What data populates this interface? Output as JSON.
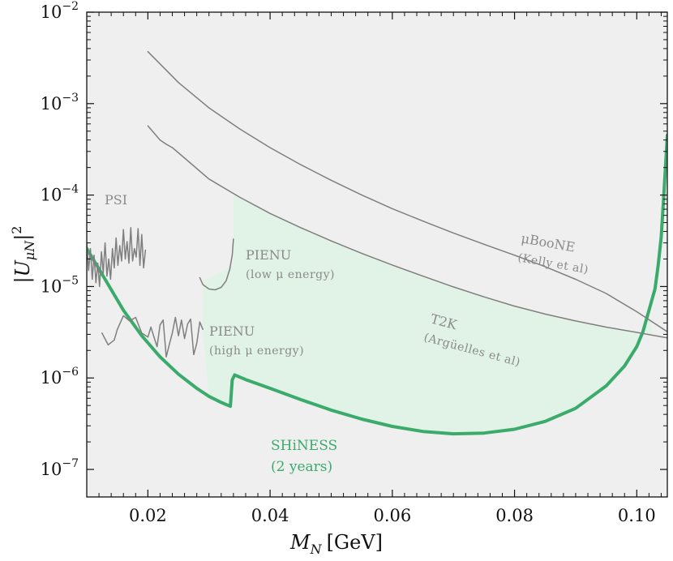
{
  "chart_data": {
    "type": "line",
    "xlabel": "M_N [GeV]",
    "xlabel_main": "M",
    "xlabel_sub": "N",
    "xlabel_unit": "[GeV]",
    "ylabel_main": "|U",
    "ylabel_sub": "μN",
    "ylabel_close": "|",
    "ylabel_exp": "2",
    "xlim": [
      0.01,
      0.105
    ],
    "ylim": [
      5e-08,
      0.01
    ],
    "x_ticks": [
      0.02,
      0.04,
      0.06,
      0.08,
      0.1
    ],
    "x_tick_labels": [
      "0.02",
      "0.04",
      "0.06",
      "0.08",
      "0.10"
    ],
    "y_ticks": [
      1e-07,
      1e-06,
      1e-05,
      0.0001,
      0.001,
      0.01
    ],
    "y_tick_bases": [
      "10",
      "10",
      "10",
      "10",
      "10",
      "10"
    ],
    "y_tick_exps": [
      "−7",
      "−6",
      "−5",
      "−4",
      "−3",
      "−2"
    ],
    "colors": {
      "excluded_fill": "#efefef",
      "projection_fill": "#e1f2e6",
      "projection_line": "#3aab6b",
      "existing_line": "#7f7f7f",
      "label_gray": "#8a8a8a",
      "axis": "#111111"
    },
    "series": [
      {
        "name": "SHiNESS (2 years)",
        "role": "projection",
        "x": [
          0.01,
          0.013,
          0.016,
          0.019,
          0.022,
          0.025,
          0.028,
          0.03,
          0.032,
          0.0335,
          0.0338,
          0.0342,
          0.036,
          0.04,
          0.045,
          0.05,
          0.055,
          0.06,
          0.065,
          0.07,
          0.075,
          0.08,
          0.085,
          0.09,
          0.095,
          0.098,
          0.1,
          0.101,
          0.102,
          0.103,
          0.1035,
          0.104,
          0.1045,
          0.105
        ],
        "y": [
          2.6e-05,
          1.2e-05,
          5.5e-06,
          2.9e-06,
          1.7e-06,
          1.1e-06,
          7.7e-07,
          6.3e-07,
          5.4e-07,
          4.9e-07,
          9.5e-07,
          1.08e-06,
          9.6e-07,
          7.7e-07,
          5.8e-07,
          4.45e-07,
          3.55e-07,
          2.95e-07,
          2.6e-07,
          2.45e-07,
          2.5e-07,
          2.75e-07,
          3.35e-07,
          4.65e-07,
          8.2e-07,
          1.35e-06,
          2.2e-06,
          3.2e-06,
          5.5e-06,
          9.5e-06,
          1.7e-05,
          3.5e-05,
          0.00012,
          0.00045
        ]
      },
      {
        "name": "PIENU (high μ energy)",
        "role": "existing",
        "x": [
          0.0125,
          0.0135,
          0.0145,
          0.015,
          0.016,
          0.017,
          0.018,
          0.019,
          0.02,
          0.0205,
          0.021,
          0.0215,
          0.022,
          0.0225,
          0.023,
          0.0235,
          0.024,
          0.0245,
          0.025,
          0.0255,
          0.026,
          0.0265,
          0.027,
          0.0275,
          0.028,
          0.0285,
          0.029
        ],
        "y": [
          3.1e-06,
          2.3e-06,
          2.6e-06,
          3.4e-06,
          4.8e-06,
          4.2e-06,
          4.6e-06,
          3.1e-06,
          2.8e-06,
          3.6e-06,
          2.8e-06,
          2.2e-06,
          3.8e-06,
          4.3e-06,
          1.7e-06,
          2.3e-06,
          3.1e-06,
          4.6e-06,
          2.9e-06,
          4.3e-06,
          2.7e-06,
          3.9e-06,
          4.4e-06,
          1.8e-06,
          2.4e-06,
          4.1e-06,
          3.4e-06
        ]
      },
      {
        "name": "PSI",
        "role": "existing",
        "x": [
          0.01,
          0.0103,
          0.0106,
          0.0109,
          0.0112,
          0.0115,
          0.0118,
          0.0121,
          0.0124,
          0.0127,
          0.013,
          0.0133,
          0.0136,
          0.0139,
          0.0142,
          0.0145,
          0.0148,
          0.0151,
          0.0154,
          0.0157,
          0.016,
          0.0163,
          0.0166,
          0.0169,
          0.0172,
          0.0175,
          0.0178,
          0.0181,
          0.0184,
          0.0187,
          0.019,
          0.0193,
          0.0196
        ],
        "y": [
          3e-05,
          1.5e-05,
          2.6e-05,
          1.2e-05,
          2.2e-05,
          1.1e-05,
          1.8e-05,
          1e-05,
          2.4e-05,
          1.4e-05,
          3e-05,
          1.3e-05,
          2e-05,
          1.2e-05,
          2.6e-05,
          1.6e-05,
          3.4e-05,
          1.7e-05,
          2.8e-05,
          1.9e-05,
          4.2e-05,
          2e-05,
          3.1e-05,
          1.8e-05,
          4.4e-05,
          1.9e-05,
          2.6e-05,
          2.1e-05,
          4.3e-05,
          1.7e-05,
          3.7e-05,
          1.6e-05,
          2.5e-05
        ]
      },
      {
        "name": "PIENU (low μ energy)",
        "role": "existing",
        "x": [
          0.0285,
          0.029,
          0.03,
          0.031,
          0.032,
          0.0328,
          0.0334,
          0.0338,
          0.034
        ],
        "y": [
          1.25e-05,
          1.05e-05,
          9.4e-06,
          9.2e-06,
          9.8e-06,
          1.15e-05,
          1.55e-05,
          2.2e-05,
          3.3e-05
        ]
      },
      {
        "name": "μBooNE (Kelly et al)",
        "role": "existing",
        "x": [
          0.02,
          0.025,
          0.03,
          0.035,
          0.04,
          0.045,
          0.05,
          0.055,
          0.06,
          0.065,
          0.07,
          0.075,
          0.08,
          0.085,
          0.09,
          0.095,
          0.1,
          0.105
        ],
        "y": [
          0.0037,
          0.0017,
          0.0009,
          0.00053,
          0.00033,
          0.000215,
          0.000145,
          0.0001,
          7.1e-05,
          5.2e-05,
          3.85e-05,
          2.9e-05,
          2.2e-05,
          1.65e-05,
          1.2e-05,
          8.4e-06,
          5.3e-06,
          3.2e-06
        ]
      },
      {
        "name": "T2K (Argüelles et al)",
        "role": "existing",
        "x": [
          0.02,
          0.022,
          0.023,
          0.024,
          0.025,
          0.03,
          0.035,
          0.04,
          0.045,
          0.05,
          0.055,
          0.06,
          0.065,
          0.07,
          0.075,
          0.08,
          0.085,
          0.09,
          0.095,
          0.1,
          0.105
        ],
        "y": [
          0.00057,
          0.0004,
          0.00036,
          0.00033,
          0.00029,
          0.00015,
          9.5e-05,
          6.3e-05,
          4.4e-05,
          3.15e-05,
          2.3e-05,
          1.72e-05,
          1.3e-05,
          9.9e-06,
          7.7e-06,
          6.1e-06,
          5e-06,
          4.2e-06,
          3.6e-06,
          3.15e-06,
          2.75e-06
        ]
      }
    ],
    "annotations": {
      "psi": "PSI",
      "pienu_low_1": "PIENU",
      "pienu_low_2": "(low μ energy)",
      "pienu_high_1": "PIENU",
      "pienu_high_2": "(high μ energy)",
      "t2k_1": "T2K",
      "t2k_2": "(Argüelles et al)",
      "uboone_1": "μBooNE",
      "uboone_2": "(Kelly et al)",
      "shiness_1": "SHiNESS",
      "shiness_2": "(2 years)"
    }
  }
}
